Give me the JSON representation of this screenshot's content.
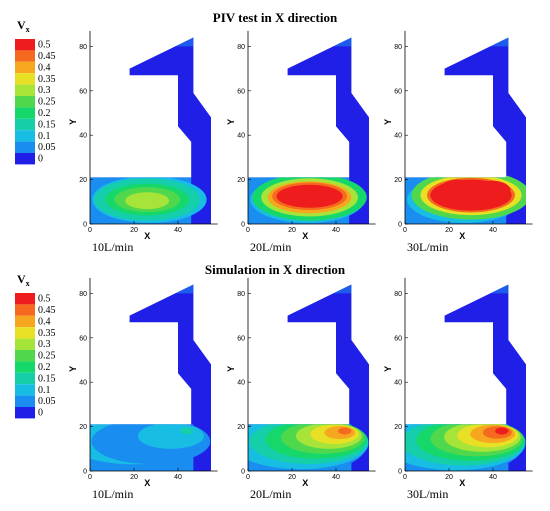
{
  "chart_data": {
    "type": "heatmap",
    "variable": {
      "symbol": "V",
      "subscript": "x"
    },
    "legend": {
      "levels": [
        0.5,
        0.45,
        0.4,
        0.35,
        0.3,
        0.25,
        0.2,
        0.15,
        0.1,
        0.05,
        0
      ],
      "labels": [
        "0.5",
        "0.45",
        "0.4",
        "0.35",
        "0.3",
        "0.25",
        "0.2",
        "0.15",
        "0.1",
        "0.05",
        "0"
      ],
      "colors": [
        "#ee1c1c",
        "#f56a1e",
        "#f7a71f",
        "#e8e024",
        "#a6e43a",
        "#4fd84c",
        "#16d76a",
        "#14cfaa",
        "#18bde4",
        "#1a8df0",
        "#1f1fe8"
      ]
    },
    "sections": [
      {
        "title": "PIV test in X direction",
        "panels": [
          {
            "caption": "10L/min",
            "peak_vx": 0.3
          },
          {
            "caption": "20L/min",
            "peak_vx": 0.5
          },
          {
            "caption": "30L/min",
            "peak_vx": 0.5
          }
        ]
      },
      {
        "title": "Simulation in X direction",
        "panels": [
          {
            "caption": "10L/min",
            "peak_vx": 0.15
          },
          {
            "caption": "20L/min",
            "peak_vx": 0.45
          },
          {
            "caption": "30L/min",
            "peak_vx": 0.5
          }
        ]
      }
    ],
    "axes": {
      "xlabel": "X",
      "ylabel": "Y",
      "xlim": [
        0,
        58
      ],
      "ylim": [
        0,
        87
      ],
      "xticks": [
        0,
        20,
        40
      ],
      "yticks": [
        0,
        20,
        40,
        60,
        80
      ]
    },
    "geometry": {
      "outline": [
        [
          0,
          0
        ],
        [
          55,
          0
        ],
        [
          55,
          48
        ],
        [
          47,
          59
        ],
        [
          47,
          84
        ],
        [
          18,
          70
        ],
        [
          18,
          67
        ],
        [
          40,
          67
        ],
        [
          40,
          44
        ],
        [
          46,
          37
        ],
        [
          46,
          21
        ],
        [
          0,
          21
        ]
      ]
    }
  }
}
